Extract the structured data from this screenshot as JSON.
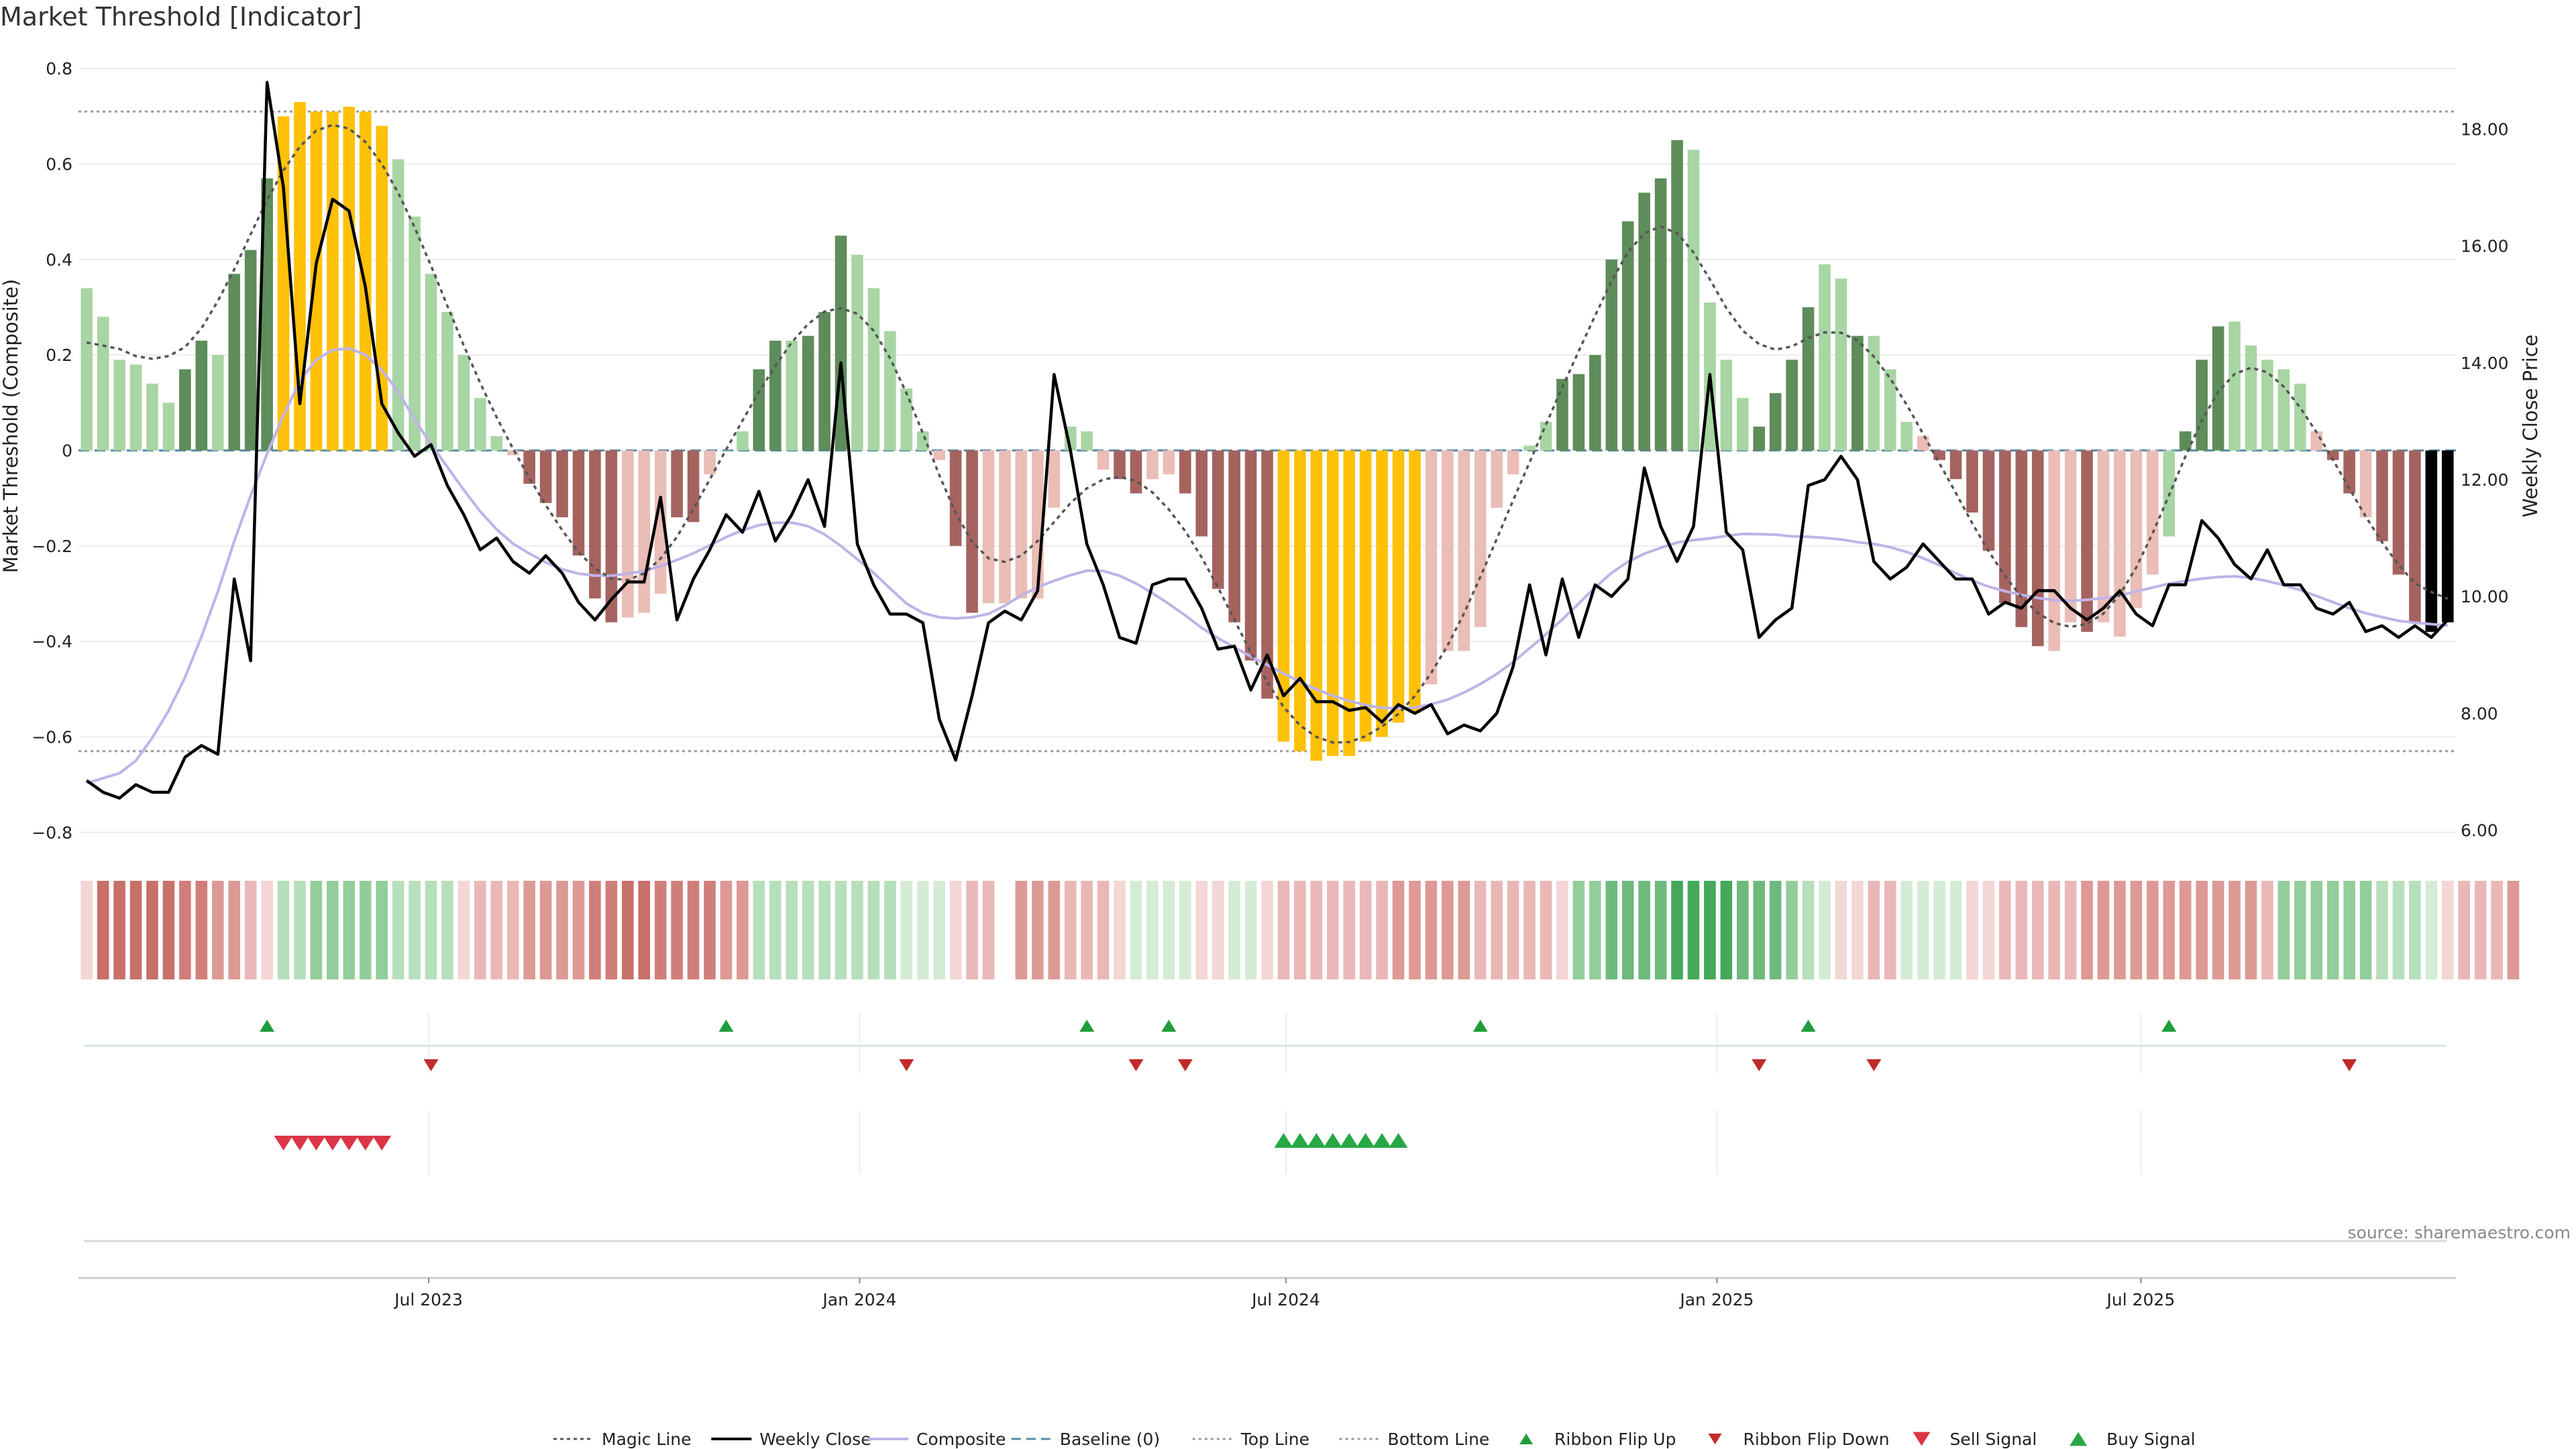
{
  "chart_data": {
    "type": "bar",
    "title": "Market Threshold [Indicator]",
    "ylabel": "Market Threshold (Composite)",
    "y2label": "Weekly Close Price",
    "ylim": [
      -0.82,
      0.82
    ],
    "y2lim": [
      5.8,
      19.2
    ],
    "yticks": [
      -0.8,
      -0.6,
      -0.4,
      -0.2,
      0,
      0.2,
      0.4,
      0.6,
      0.8
    ],
    "yticklabels": [
      "−0.8",
      "−0.6",
      "−0.4",
      "−0.2",
      "0",
      "0.2",
      "0.4",
      "0.6",
      "0.8"
    ],
    "y2ticks": [
      6,
      8,
      10,
      12,
      14,
      16,
      18
    ],
    "y2ticklabels": [
      "6.00",
      "8.00",
      "10.00",
      "12.00",
      "14.00",
      "16.00",
      "18.00"
    ],
    "x_start": "2023-02-05",
    "x_interval": "1 week",
    "x_ticks": [
      {
        "date": "2023-07-01",
        "label": "Jul 2023"
      },
      {
        "date": "2024-01-01",
        "label": "Jan 2024"
      },
      {
        "date": "2024-07-01",
        "label": "Jul 2024"
      },
      {
        "date": "2025-01-01",
        "label": "Jan 2025"
      },
      {
        "date": "2025-07-01",
        "label": "Jul 2025"
      }
    ],
    "top_line": 0.71,
    "bottom_line": -0.63,
    "baseline": 0,
    "grid": true,
    "legend_position": "bottom",
    "legend": [
      "Magic Line",
      "Weekly Close",
      "Composite",
      "Baseline (0)",
      "Top Line",
      "Bottom Line",
      "Ribbon Flip Up",
      "Ribbon Flip Down",
      "Sell Signal",
      "Buy Signal"
    ],
    "colors": {
      "extreme": "#ffc107",
      "strong_up": "#5e8c5a",
      "weak_up": "#a8d5a4",
      "strong_down": "#a5635f",
      "weak_down": "#eabdb6",
      "close": "#000000",
      "magic": "#555555",
      "composite": "#bfb3e8",
      "baseline": "#5a8aa6",
      "ribbon_up": "#1f9d3a",
      "ribbon_down": "#c22a2a",
      "sell": "#dc3545",
      "buy": "#28a745"
    },
    "histogram": [
      0.34,
      0.28,
      0.19,
      0.18,
      0.14,
      0.1,
      0.17,
      0.23,
      0.2,
      0.37,
      0.42,
      0.57,
      0.7,
      0.73,
      0.71,
      0.71,
      0.72,
      0.71,
      0.68,
      0.61,
      0.49,
      0.37,
      0.29,
      0.2,
      0.11,
      0.03,
      -0.01,
      -0.07,
      -0.11,
      -0.14,
      -0.22,
      -0.31,
      -0.36,
      -0.35,
      -0.34,
      -0.3,
      -0.14,
      -0.15,
      -0.05,
      0.0,
      0.04,
      0.17,
      0.23,
      0.23,
      0.24,
      0.29,
      0.45,
      0.41,
      0.34,
      0.25,
      0.13,
      0.04,
      -0.02,
      -0.2,
      -0.34,
      -0.32,
      -0.32,
      -0.31,
      -0.31,
      -0.12,
      0.05,
      0.04,
      -0.04,
      -0.06,
      -0.09,
      -0.06,
      -0.05,
      -0.09,
      -0.18,
      -0.29,
      -0.36,
      -0.44,
      -0.52,
      -0.61,
      -0.63,
      -0.65,
      -0.64,
      -0.64,
      -0.61,
      -0.6,
      -0.57,
      -0.55,
      -0.49,
      -0.42,
      -0.42,
      -0.37,
      -0.12,
      -0.05,
      0.01,
      0.06,
      0.15,
      0.16,
      0.2,
      0.4,
      0.48,
      0.54,
      0.57,
      0.65,
      0.63,
      0.31,
      0.19,
      0.11,
      0.05,
      0.12,
      0.19,
      0.3,
      0.39,
      0.36,
      0.24,
      0.24,
      0.17,
      0.06,
      0.03,
      -0.02,
      -0.06,
      -0.13,
      -0.21,
      -0.32,
      -0.37,
      -0.41,
      -0.42,
      -0.36,
      -0.38,
      -0.36,
      -0.39,
      -0.33,
      -0.26,
      -0.18,
      0.04,
      0.19,
      0.26,
      0.27,
      0.22,
      0.19,
      0.17,
      0.14,
      0.04,
      -0.02,
      -0.09,
      -0.14,
      -0.19,
      -0.26,
      -0.36,
      -0.38,
      -0.36
    ],
    "histogram_class": [
      "wu",
      "wu",
      "wu",
      "wu",
      "wu",
      "wu",
      "su",
      "su",
      "wu",
      "su",
      "su",
      "su",
      "ex",
      "ex",
      "ex",
      "ex",
      "ex",
      "ex",
      "ex",
      "wu",
      "wu",
      "wu",
      "wu",
      "wu",
      "wu",
      "wu",
      "wd",
      "sd",
      "sd",
      "sd",
      "sd",
      "sd",
      "sd",
      "wd",
      "wd",
      "wd",
      "sd",
      "sd",
      "wd",
      "wu",
      "wu",
      "su",
      "su",
      "wu",
      "su",
      "su",
      "su",
      "wu",
      "wu",
      "wu",
      "wu",
      "wu",
      "wd",
      "sd",
      "sd",
      "wd",
      "wd",
      "wd",
      "wd",
      "wd",
      "wu",
      "wu",
      "wd",
      "sd",
      "sd",
      "wd",
      "wd",
      "sd",
      "sd",
      "sd",
      "sd",
      "sd",
      "sd",
      "ex",
      "ex",
      "ex",
      "ex",
      "ex",
      "ex",
      "ex",
      "ex",
      "ex",
      "wd",
      "wd",
      "wd",
      "wd",
      "wd",
      "wd",
      "wu",
      "wu",
      "su",
      "su",
      "su",
      "su",
      "su",
      "su",
      "su",
      "su",
      "wu",
      "wu",
      "wu",
      "wu",
      "su",
      "su",
      "su",
      "su",
      "wu",
      "wu",
      "su",
      "wu",
      "wu",
      "wu",
      "wd",
      "sd",
      "sd",
      "sd",
      "sd",
      "sd",
      "sd",
      "sd",
      "wd",
      "wd",
      "sd",
      "wd",
      "wd",
      "wd",
      "wd",
      "wu",
      "su",
      "su",
      "su",
      "wu",
      "wu",
      "wu",
      "wu",
      "wu",
      "wd",
      "sd",
      "sd",
      "wd",
      "sd",
      "sd",
      "sd"
    ],
    "weekly_close": [
      6.85,
      6.65,
      6.55,
      6.78,
      6.65,
      6.65,
      7.25,
      7.45,
      7.3,
      10.3,
      8.9,
      18.8,
      17.0,
      13.3,
      15.7,
      16.8,
      16.6,
      15.3,
      13.3,
      12.8,
      12.4,
      12.6,
      11.9,
      11.4,
      10.8,
      11.0,
      10.6,
      10.4,
      10.7,
      10.4,
      9.9,
      9.6,
      9.95,
      10.25,
      10.25,
      11.7,
      9.6,
      10.3,
      10.8,
      11.4,
      11.1,
      11.8,
      10.95,
      11.4,
      12.0,
      11.2,
      14.0,
      10.9,
      10.2,
      9.7,
      9.7,
      9.55,
      7.9,
      7.2,
      8.3,
      9.55,
      9.75,
      9.6,
      10.1,
      13.8,
      12.5,
      10.9,
      10.2,
      9.3,
      9.2,
      10.2,
      10.3,
      10.3,
      9.8,
      9.1,
      9.15,
      8.4,
      9.0,
      8.3,
      8.6,
      8.2,
      8.2,
      8.05,
      8.1,
      7.85,
      8.15,
      8.0,
      8.15,
      7.65,
      7.8,
      7.7,
      8.0,
      8.8,
      10.2,
      9.0,
      10.3,
      9.3,
      10.2,
      10.0,
      10.3,
      12.2,
      11.2,
      10.6,
      11.2,
      13.8,
      11.1,
      10.8,
      9.3,
      9.6,
      9.8,
      11.9,
      12.0,
      12.4,
      12.0,
      10.6,
      10.3,
      10.5,
      10.9,
      10.6,
      10.3,
      10.3,
      9.7,
      9.9,
      9.8,
      10.1,
      10.1,
      9.8,
      9.6,
      9.8,
      10.1,
      9.7,
      9.5,
      10.2,
      10.2,
      11.3,
      11.0,
      10.55,
      10.3,
      10.8,
      10.2,
      10.2,
      9.8,
      9.7,
      9.9,
      9.4,
      9.5,
      9.3,
      9.5,
      9.3,
      9.6
    ]
  },
  "strips": {
    "ribbon": [
      -1,
      -5,
      -5,
      -5,
      -5,
      -5,
      -4,
      -4,
      -3,
      -3,
      -2,
      -1,
      2,
      2,
      3,
      3,
      3,
      3,
      3,
      2,
      2,
      2,
      2,
      -1,
      -2,
      -2,
      -2,
      -3,
      -3,
      -3,
      -3,
      -4,
      -4,
      -5,
      -5,
      -4,
      -4,
      -4,
      -4,
      -3,
      -3,
      2,
      2,
      2,
      2,
      2,
      2,
      2,
      2,
      2,
      1,
      1,
      1,
      -1,
      -2,
      -2,
      0,
      -3,
      -3,
      -3,
      -2,
      -2,
      -2,
      -1,
      1,
      1,
      1,
      1,
      -1,
      -1,
      1,
      1,
      -1,
      -2,
      -2,
      -2,
      -2,
      -2,
      -2,
      -2,
      -3,
      -3,
      -3,
      -3,
      -3,
      -2,
      -2,
      -2,
      -2,
      -2,
      -1,
      3,
      3,
      4,
      4,
      4,
      4,
      5,
      5,
      5,
      5,
      4,
      4,
      4,
      3,
      2,
      1,
      -1,
      -1,
      -2,
      -2,
      1,
      1,
      1,
      1,
      -1,
      -1,
      -2,
      -2,
      -2,
      -2,
      -2,
      -3,
      -3,
      -3,
      -3,
      -3,
      -3,
      -3,
      -3,
      -3,
      -3,
      -3,
      -2,
      3,
      3,
      3,
      3,
      3,
      3,
      2,
      2,
      2,
      1,
      -1,
      -2,
      -2,
      -2,
      -3
    ],
    "flip_up": [
      11,
      39,
      61,
      66,
      85,
      105,
      127
    ],
    "flip_down": [
      21,
      50,
      64,
      67,
      102,
      109,
      138
    ],
    "sell": [
      12,
      13,
      14,
      15,
      16,
      17,
      18
    ],
    "buy": [
      73,
      74,
      75,
      76,
      77,
      78,
      79,
      80
    ]
  },
  "source": "source: sharemaestro.com"
}
